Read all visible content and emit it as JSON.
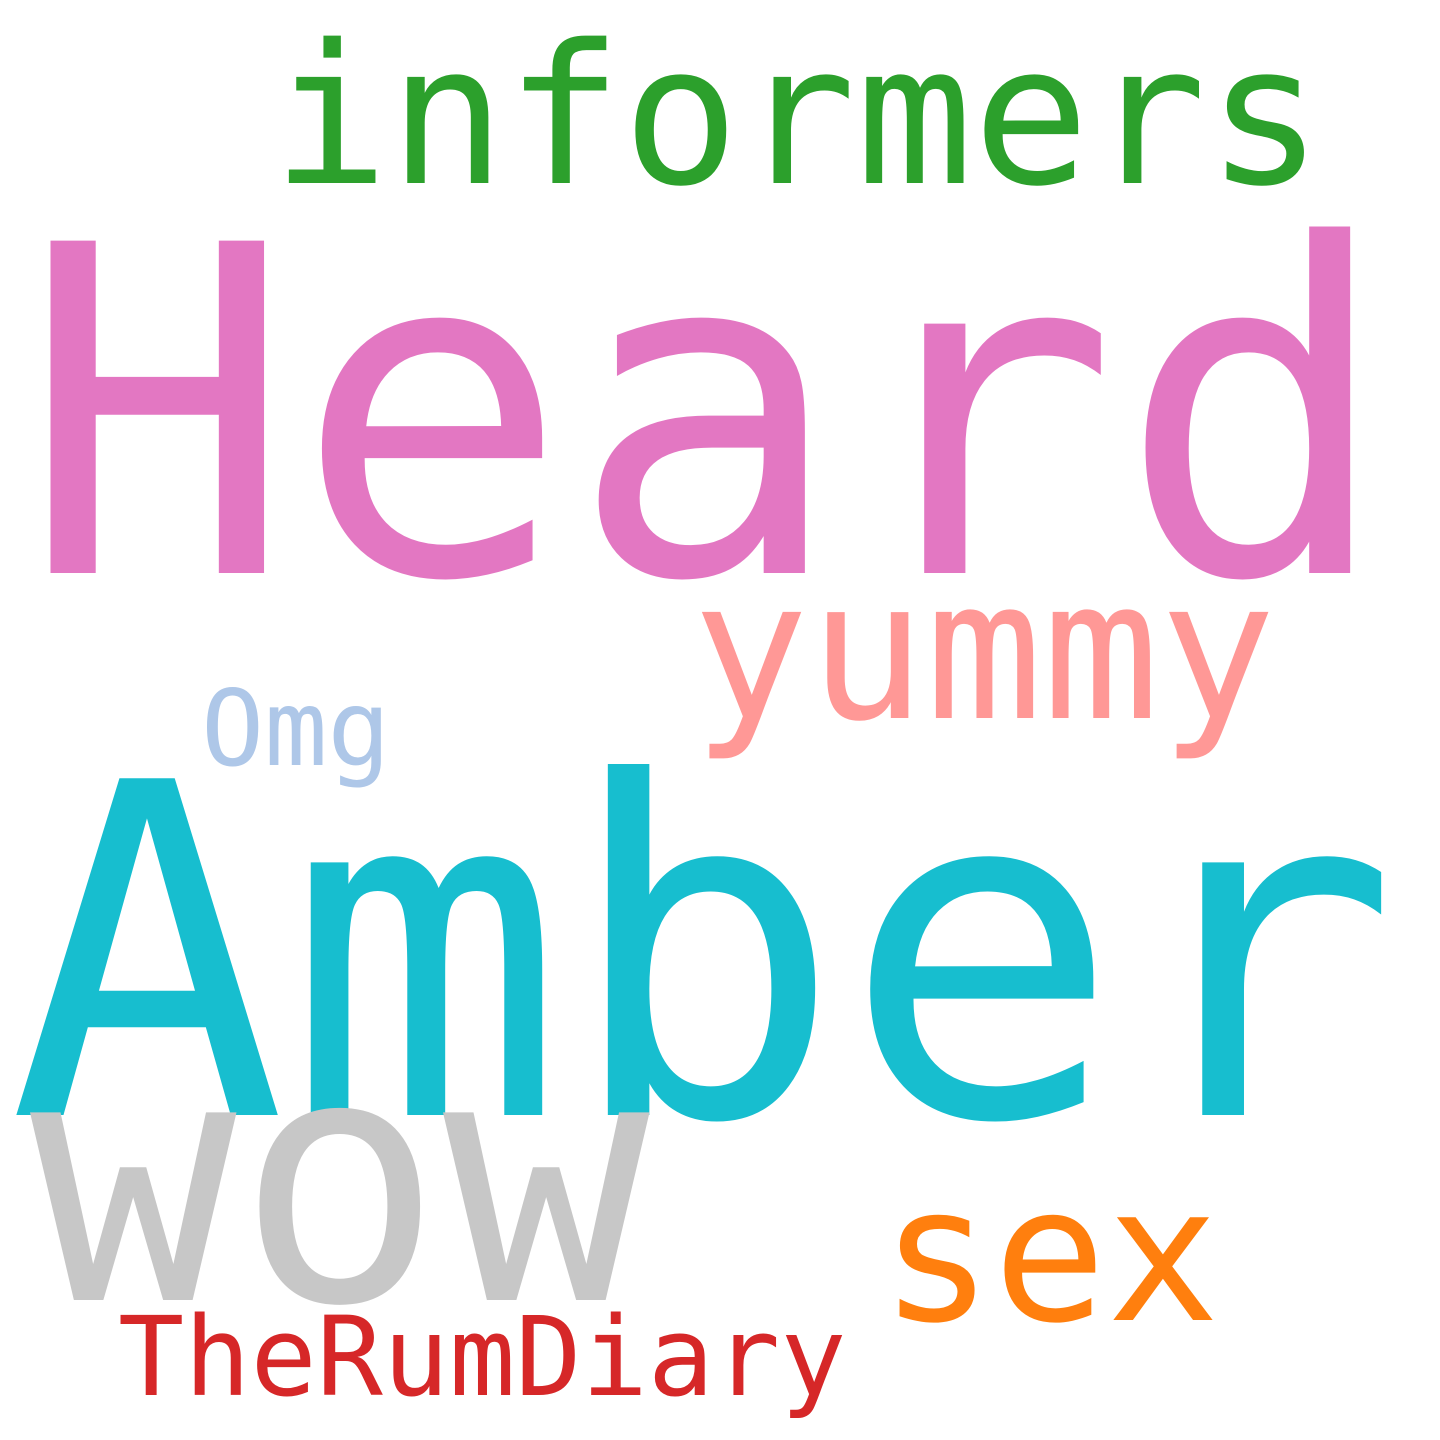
{
  "words": [
    "informers",
    "Heard",
    "yummy",
    "Omg",
    "Amber",
    "wow",
    "sex",
    "TheRumDiary"
  ]
}
